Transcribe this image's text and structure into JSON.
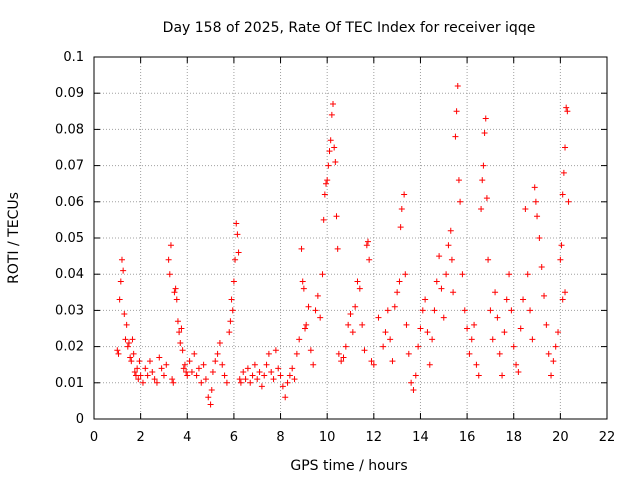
{
  "chart_data": {
    "type": "scatter",
    "title": "Day 158 of 2025, Rate Of TEC Index for receiver iqqe",
    "xlabel": "GPS time / hours",
    "ylabel": "ROTI / TECUs",
    "xlim": [
      0,
      22
    ],
    "ylim": [
      0,
      0.1
    ],
    "xticks": [
      "0",
      "2",
      "4",
      "6",
      "8",
      "10",
      "12",
      "14",
      "16",
      "18",
      "20",
      "22"
    ],
    "yticks": [
      "0",
      "0.01",
      "0.02",
      "0.03",
      "0.04",
      "0.05",
      "0.06",
      "0.07",
      "0.08",
      "0.09",
      "0.1"
    ],
    "grid": true,
    "marker": "plus",
    "color": "#ff0000",
    "series": [
      {
        "points": [
          [
            1.0,
            0.019
          ],
          [
            1.05,
            0.018
          ],
          [
            1.1,
            0.033
          ],
          [
            1.15,
            0.038
          ],
          [
            1.2,
            0.044
          ],
          [
            1.25,
            0.041
          ],
          [
            1.3,
            0.029
          ],
          [
            1.35,
            0.022
          ],
          [
            1.4,
            0.026
          ],
          [
            1.45,
            0.02
          ],
          [
            1.5,
            0.021
          ],
          [
            1.55,
            0.017
          ],
          [
            1.6,
            0.016
          ],
          [
            1.65,
            0.022
          ],
          [
            1.7,
            0.018
          ],
          [
            1.75,
            0.013
          ],
          [
            1.8,
            0.012
          ],
          [
            1.85,
            0.014
          ],
          [
            1.9,
            0.011
          ],
          [
            1.95,
            0.016
          ],
          [
            2.0,
            0.012
          ],
          [
            2.1,
            0.01
          ],
          [
            2.2,
            0.014
          ],
          [
            2.3,
            0.012
          ],
          [
            2.4,
            0.016
          ],
          [
            2.5,
            0.013
          ],
          [
            2.6,
            0.011
          ],
          [
            2.7,
            0.01
          ],
          [
            2.8,
            0.017
          ],
          [
            2.9,
            0.014
          ],
          [
            3.0,
            0.012
          ],
          [
            3.1,
            0.015
          ],
          [
            3.2,
            0.044
          ],
          [
            3.25,
            0.04
          ],
          [
            3.3,
            0.048
          ],
          [
            3.35,
            0.011
          ],
          [
            3.4,
            0.01
          ],
          [
            3.45,
            0.035
          ],
          [
            3.5,
            0.036
          ],
          [
            3.55,
            0.033
          ],
          [
            3.6,
            0.027
          ],
          [
            3.65,
            0.024
          ],
          [
            3.7,
            0.021
          ],
          [
            3.75,
            0.025
          ],
          [
            3.8,
            0.019
          ],
          [
            3.85,
            0.014
          ],
          [
            3.9,
            0.015
          ],
          [
            3.95,
            0.013
          ],
          [
            4.0,
            0.012
          ],
          [
            4.1,
            0.016
          ],
          [
            4.2,
            0.013
          ],
          [
            4.3,
            0.018
          ],
          [
            4.4,
            0.012
          ],
          [
            4.5,
            0.014
          ],
          [
            4.6,
            0.01
          ],
          [
            4.7,
            0.015
          ],
          [
            4.8,
            0.011
          ],
          [
            4.9,
            0.006
          ],
          [
            5.0,
            0.004
          ],
          [
            5.05,
            0.008
          ],
          [
            5.1,
            0.013
          ],
          [
            5.2,
            0.016
          ],
          [
            5.3,
            0.018
          ],
          [
            5.4,
            0.021
          ],
          [
            5.5,
            0.015
          ],
          [
            5.6,
            0.012
          ],
          [
            5.7,
            0.01
          ],
          [
            5.8,
            0.024
          ],
          [
            5.85,
            0.027
          ],
          [
            5.9,
            0.033
          ],
          [
            5.95,
            0.03
          ],
          [
            6.0,
            0.038
          ],
          [
            6.05,
            0.044
          ],
          [
            6.1,
            0.054
          ],
          [
            6.15,
            0.051
          ],
          [
            6.2,
            0.046
          ],
          [
            6.25,
            0.011
          ],
          [
            6.3,
            0.01
          ],
          [
            6.4,
            0.013
          ],
          [
            6.5,
            0.011
          ],
          [
            6.6,
            0.014
          ],
          [
            6.7,
            0.01
          ],
          [
            6.8,
            0.012
          ],
          [
            6.9,
            0.015
          ],
          [
            7.0,
            0.011
          ],
          [
            7.1,
            0.013
          ],
          [
            7.2,
            0.009
          ],
          [
            7.3,
            0.012
          ],
          [
            7.4,
            0.015
          ],
          [
            7.5,
            0.018
          ],
          [
            7.6,
            0.013
          ],
          [
            7.7,
            0.011
          ],
          [
            7.8,
            0.019
          ],
          [
            7.9,
            0.014
          ],
          [
            8.0,
            0.012
          ],
          [
            8.1,
            0.009
          ],
          [
            8.2,
            0.006
          ],
          [
            8.3,
            0.01
          ],
          [
            8.4,
            0.012
          ],
          [
            8.5,
            0.014
          ],
          [
            8.6,
            0.011
          ],
          [
            8.7,
            0.018
          ],
          [
            8.8,
            0.022
          ],
          [
            8.9,
            0.047
          ],
          [
            8.95,
            0.038
          ],
          [
            9.0,
            0.036
          ],
          [
            9.05,
            0.025
          ],
          [
            9.1,
            0.026
          ],
          [
            9.2,
            0.031
          ],
          [
            9.3,
            0.019
          ],
          [
            9.4,
            0.015
          ],
          [
            9.5,
            0.03
          ],
          [
            9.6,
            0.034
          ],
          [
            9.7,
            0.028
          ],
          [
            9.8,
            0.04
          ],
          [
            9.85,
            0.055
          ],
          [
            9.9,
            0.062
          ],
          [
            9.95,
            0.065
          ],
          [
            10.0,
            0.066
          ],
          [
            10.05,
            0.07
          ],
          [
            10.1,
            0.074
          ],
          [
            10.15,
            0.077
          ],
          [
            10.2,
            0.084
          ],
          [
            10.25,
            0.087
          ],
          [
            10.3,
            0.075
          ],
          [
            10.35,
            0.071
          ],
          [
            10.4,
            0.056
          ],
          [
            10.45,
            0.047
          ],
          [
            10.5,
            0.018
          ],
          [
            10.6,
            0.016
          ],
          [
            10.7,
            0.017
          ],
          [
            10.8,
            0.02
          ],
          [
            10.9,
            0.026
          ],
          [
            11.0,
            0.029
          ],
          [
            11.1,
            0.024
          ],
          [
            11.2,
            0.031
          ],
          [
            11.3,
            0.038
          ],
          [
            11.4,
            0.036
          ],
          [
            11.5,
            0.026
          ],
          [
            11.6,
            0.019
          ],
          [
            11.7,
            0.048
          ],
          [
            11.75,
            0.049
          ],
          [
            11.8,
            0.044
          ],
          [
            11.9,
            0.016
          ],
          [
            12.0,
            0.015
          ],
          [
            12.2,
            0.028
          ],
          [
            12.4,
            0.02
          ],
          [
            12.5,
            0.024
          ],
          [
            12.6,
            0.03
          ],
          [
            12.7,
            0.022
          ],
          [
            12.8,
            0.016
          ],
          [
            12.9,
            0.031
          ],
          [
            13.0,
            0.035
          ],
          [
            13.1,
            0.038
          ],
          [
            13.15,
            0.053
          ],
          [
            13.2,
            0.058
          ],
          [
            13.3,
            0.062
          ],
          [
            13.35,
            0.04
          ],
          [
            13.4,
            0.026
          ],
          [
            13.5,
            0.018
          ],
          [
            13.6,
            0.01
          ],
          [
            13.7,
            0.008
          ],
          [
            13.8,
            0.012
          ],
          [
            13.9,
            0.02
          ],
          [
            14.0,
            0.025
          ],
          [
            14.1,
            0.03
          ],
          [
            14.2,
            0.033
          ],
          [
            14.3,
            0.024
          ],
          [
            14.4,
            0.015
          ],
          [
            14.5,
            0.022
          ],
          [
            14.6,
            0.03
          ],
          [
            14.7,
            0.038
          ],
          [
            14.8,
            0.045
          ],
          [
            14.9,
            0.036
          ],
          [
            15.0,
            0.028
          ],
          [
            15.1,
            0.04
          ],
          [
            15.2,
            0.048
          ],
          [
            15.3,
            0.052
          ],
          [
            15.35,
            0.044
          ],
          [
            15.4,
            0.035
          ],
          [
            15.5,
            0.078
          ],
          [
            15.55,
            0.085
          ],
          [
            15.6,
            0.092
          ],
          [
            15.65,
            0.066
          ],
          [
            15.7,
            0.06
          ],
          [
            15.8,
            0.04
          ],
          [
            15.9,
            0.03
          ],
          [
            16.0,
            0.025
          ],
          [
            16.1,
            0.018
          ],
          [
            16.2,
            0.022
          ],
          [
            16.3,
            0.026
          ],
          [
            16.4,
            0.015
          ],
          [
            16.5,
            0.012
          ],
          [
            16.6,
            0.058
          ],
          [
            16.65,
            0.066
          ],
          [
            16.7,
            0.07
          ],
          [
            16.75,
            0.079
          ],
          [
            16.8,
            0.083
          ],
          [
            16.85,
            0.061
          ],
          [
            16.9,
            0.044
          ],
          [
            17.0,
            0.03
          ],
          [
            17.1,
            0.022
          ],
          [
            17.2,
            0.035
          ],
          [
            17.3,
            0.028
          ],
          [
            17.4,
            0.018
          ],
          [
            17.5,
            0.012
          ],
          [
            17.6,
            0.024
          ],
          [
            17.7,
            0.033
          ],
          [
            17.8,
            0.04
          ],
          [
            17.9,
            0.03
          ],
          [
            18.0,
            0.02
          ],
          [
            18.1,
            0.015
          ],
          [
            18.2,
            0.013
          ],
          [
            18.3,
            0.025
          ],
          [
            18.4,
            0.033
          ],
          [
            18.5,
            0.058
          ],
          [
            18.6,
            0.04
          ],
          [
            18.7,
            0.03
          ],
          [
            18.8,
            0.022
          ],
          [
            18.9,
            0.064
          ],
          [
            18.95,
            0.06
          ],
          [
            19.0,
            0.056
          ],
          [
            19.1,
            0.05
          ],
          [
            19.2,
            0.042
          ],
          [
            19.3,
            0.034
          ],
          [
            19.4,
            0.026
          ],
          [
            19.5,
            0.018
          ],
          [
            19.6,
            0.012
          ],
          [
            19.7,
            0.016
          ],
          [
            19.8,
            0.02
          ],
          [
            19.9,
            0.024
          ],
          [
            20.0,
            0.044
          ],
          [
            20.05,
            0.048
          ],
          [
            20.1,
            0.062
          ],
          [
            20.15,
            0.068
          ],
          [
            20.2,
            0.075
          ],
          [
            20.25,
            0.086
          ],
          [
            20.3,
            0.085
          ],
          [
            20.35,
            0.06
          ],
          [
            20.2,
            0.035
          ],
          [
            20.1,
            0.033
          ]
        ]
      }
    ]
  }
}
